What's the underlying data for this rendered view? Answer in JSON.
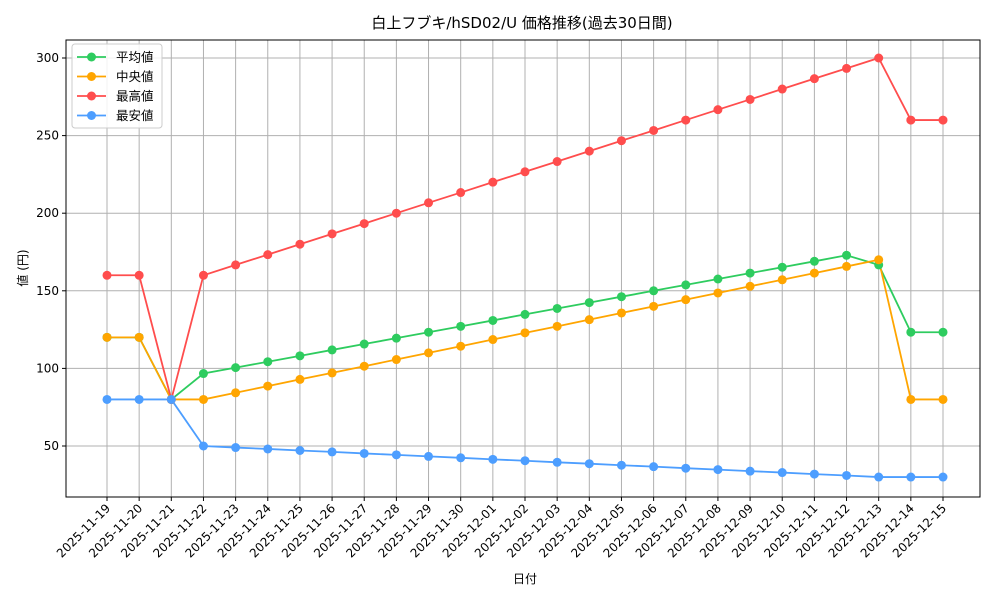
{
  "chart_data": {
    "type": "line",
    "title": "白上フブキ/hSD02/U 価格推移(過去30日間)",
    "xlabel": "日付",
    "ylabel": "値 (円)",
    "ylim": [
      17,
      311.6
    ],
    "yticks": [
      50,
      100,
      150,
      200,
      250,
      300
    ],
    "grid": true,
    "legend_position": "upper left",
    "x": [
      "2025-11-19",
      "2025-11-20",
      "2025-11-21",
      "2025-11-22",
      "2025-11-23",
      "2025-11-24",
      "2025-11-25",
      "2025-11-26",
      "2025-11-27",
      "2025-11-28",
      "2025-11-29",
      "2025-11-30",
      "2025-12-01",
      "2025-12-02",
      "2025-12-03",
      "2025-12-04",
      "2025-12-05",
      "2025-12-06",
      "2025-12-07",
      "2025-12-08",
      "2025-12-09",
      "2025-12-10",
      "2025-12-11",
      "2025-12-12",
      "2025-12-13",
      "2025-12-14",
      "2025-12-15"
    ],
    "series": [
      {
        "name": "平均値",
        "color": "#2ecc5f",
        "values": [
          120,
          120,
          80,
          96.7,
          100.5,
          104.3,
          108.1,
          111.9,
          115.7,
          119.5,
          123.3,
          127.1,
          130.9,
          134.8,
          138.6,
          142.4,
          146.2,
          150.0,
          153.8,
          157.6,
          161.4,
          165.2,
          169.0,
          172.9,
          166.7,
          123.3,
          123.3
        ]
      },
      {
        "name": "中央値",
        "color": "#ffa500",
        "values": [
          120,
          120,
          80,
          80,
          84.3,
          88.6,
          92.9,
          97.1,
          101.4,
          105.7,
          110.0,
          114.3,
          118.6,
          122.9,
          127.1,
          131.4,
          135.7,
          140.0,
          144.3,
          148.6,
          152.9,
          157.1,
          161.4,
          165.7,
          170,
          80,
          80
        ]
      },
      {
        "name": "最高値",
        "color": "#ff4d4d",
        "values": [
          160,
          160,
          80,
          160,
          166.7,
          173.3,
          180,
          186.7,
          193.3,
          200,
          206.7,
          213.3,
          220,
          226.7,
          233.3,
          240,
          246.7,
          253.3,
          260,
          266.7,
          273.3,
          280,
          286.7,
          293.3,
          300,
          260,
          260
        ]
      },
      {
        "name": "最安値",
        "color": "#4d9eff",
        "values": [
          80,
          80,
          80,
          50,
          49.0,
          48.1,
          47.1,
          46.2,
          45.2,
          44.3,
          43.3,
          42.4,
          41.4,
          40.5,
          39.5,
          38.6,
          37.6,
          36.7,
          35.7,
          34.8,
          33.8,
          32.9,
          31.9,
          31.0,
          30,
          30,
          30
        ]
      }
    ]
  }
}
